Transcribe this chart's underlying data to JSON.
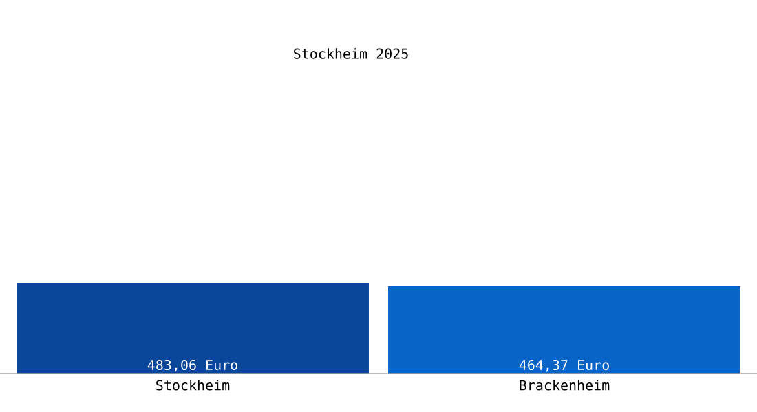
{
  "chart_data": {
    "type": "bar",
    "title": "Stockheim 2025",
    "categories": [
      "Stockheim",
      "Brackenheim"
    ],
    "values": [
      483.06,
      464.37
    ],
    "colors": [
      "#0a479a",
      "#0a64c8"
    ],
    "value_labels": [
      "483,06 Euro",
      "464,37 Euro"
    ],
    "tick_labels": "x"
  }
}
